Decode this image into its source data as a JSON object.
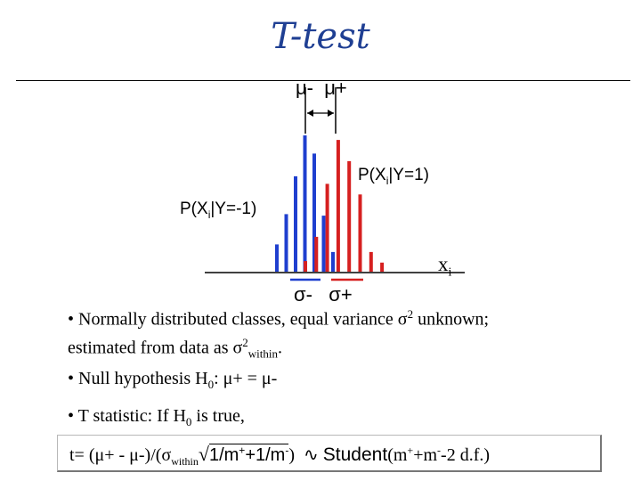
{
  "slide": {
    "title": "T-test",
    "colors": {
      "title": "#1f3f93",
      "blue_bars": "#1f3fcf",
      "red_bars": "#d62020"
    }
  },
  "diagram": {
    "mu_minus": "μ-",
    "mu_plus": "μ+",
    "p_pos_prefix": "P(X",
    "p_pos_sub": "i",
    "p_pos_suffix": "|Y=1)",
    "p_neg_prefix": "P(X",
    "p_neg_sub": "i",
    "p_neg_suffix": "|Y=-1)",
    "x_label": "x",
    "x_label_sub": "i",
    "sigma_minus": "σ-",
    "sigma_plus": "σ+",
    "blue_bar_levels": [
      0.18,
      0.38,
      0.63,
      0.9,
      0.78,
      0.37,
      0.13
    ],
    "red_bar_levels": [
      0.07,
      0.23,
      0.58,
      0.87,
      0.73,
      0.51,
      0.13,
      0.06
    ]
  },
  "bullets": {
    "b1_line1_a": "• Normally distributed classes, equal variance σ",
    "b1_line1_sup": "2",
    "b1_line1_b": " unknown;",
    "b1_line2_a": "estimated from data as σ",
    "b1_line2_sup": "2",
    "b1_line2_sub": "within",
    "b1_line2_b": ".",
    "b2_a": "• Null hypothesis H",
    "b2_sub": "0",
    "b2_b": ": μ+ = μ-",
    "b3_a": "• T statistic: If H",
    "b3_sub": "0",
    "b3_b": " is true,"
  },
  "formula": {
    "lhs": "t= (μ+ - μ-)/(σ",
    "within": "within",
    "sqrt": "√",
    "m": "1/m",
    "sup_plus": "+",
    "plus_one": "+1/m",
    "sup_minus": "-",
    "close": ")",
    "tilde": "∿",
    "student": "Student",
    "args_open": "(m",
    "args_plus": "+",
    "args_m": "+m",
    "args_minus": "-",
    "args_tail": "-2 d.f.)"
  }
}
